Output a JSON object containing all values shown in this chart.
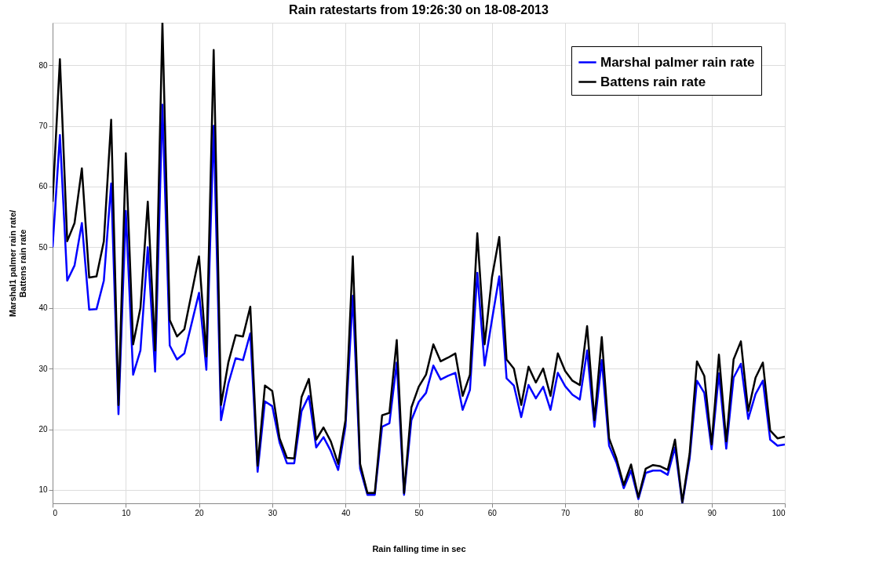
{
  "chart_data": {
    "type": "line",
    "title": "Rain ratestarts from 19:26:30 on 18-08-2013",
    "xlabel": "Rain falling time in sec",
    "ylabel": "Marshal1 palmer rain rate/\nBattens rain rate",
    "x": [
      0,
      1,
      2,
      3,
      4,
      5,
      6,
      7,
      8,
      9,
      10,
      11,
      12,
      13,
      14,
      15,
      16,
      17,
      18,
      19,
      20,
      21,
      22,
      23,
      24,
      25,
      26,
      27,
      28,
      29,
      30,
      31,
      32,
      33,
      34,
      35,
      36,
      37,
      38,
      39,
      40,
      41,
      42,
      43,
      44,
      45,
      46,
      47,
      48,
      49,
      50,
      51,
      52,
      53,
      54,
      55,
      56,
      57,
      58,
      59,
      60,
      61,
      62,
      63,
      64,
      65,
      66,
      67,
      68,
      69,
      70,
      71,
      72,
      73,
      74,
      75,
      76,
      77,
      78,
      79,
      80,
      81,
      82,
      83,
      84,
      85,
      86,
      87,
      88,
      89,
      90,
      91,
      92,
      93,
      94,
      95,
      96,
      97,
      98,
      99,
      100
    ],
    "series": [
      {
        "name": "Marshal palmer rain rate",
        "color": "#0000ff",
        "values": [
          50,
          68.5,
          44.5,
          47,
          54,
          39.7,
          39.8,
          44.5,
          60.5,
          22.5,
          56,
          29,
          33,
          50,
          29.5,
          73.5,
          33.8,
          31.5,
          32.5,
          37.5,
          42.5,
          29.8,
          70,
          21.5,
          27.5,
          31.7,
          31.4,
          35.8,
          13,
          24.6,
          23.8,
          17.8,
          14.4,
          14.4,
          23,
          25.5,
          17,
          18.7,
          16.4,
          13.3,
          20.5,
          42,
          13.5,
          9.2,
          9.2,
          20.4,
          21,
          31,
          9.2,
          21.5,
          24.5,
          26,
          30.5,
          28.2,
          28.8,
          29.3,
          23.2,
          26.5,
          45.8,
          30.5,
          38,
          45.2,
          28.4,
          27.2,
          22,
          27.3,
          25.1,
          27,
          23.2,
          29.3,
          27.1,
          25.7,
          24.9,
          33,
          20.4,
          31.4,
          17.3,
          14.5,
          10.3,
          13.2,
          8.5,
          12.8,
          13.2,
          13.2,
          12.5,
          17,
          7.8,
          15.2,
          28,
          26,
          16.7,
          29.2,
          16.8,
          28.5,
          30.8,
          21.7,
          25.8,
          28,
          18.3,
          17.3,
          17.5
        ]
      },
      {
        "name": "Battens rain rate",
        "color": "#000000",
        "values": [
          57.5,
          81,
          51,
          54,
          63,
          45,
          45.2,
          51,
          71,
          24,
          65.5,
          34,
          40,
          57.5,
          33,
          87,
          38,
          35.3,
          36.5,
          42.5,
          48.5,
          32,
          82.5,
          24,
          31,
          35.5,
          35.3,
          40.2,
          14,
          27.2,
          26.3,
          18.5,
          15.3,
          15.2,
          25.3,
          28.3,
          18.3,
          20.3,
          18,
          14.3,
          21.5,
          48.5,
          14.3,
          9.5,
          9.5,
          22.3,
          22.7,
          34.7,
          9.5,
          23.6,
          27,
          29,
          34,
          31.2,
          31.8,
          32.5,
          25.5,
          29,
          52.3,
          34,
          45,
          51.7,
          31.5,
          30,
          24,
          30.3,
          27.7,
          30,
          25.5,
          32.5,
          29.6,
          28,
          27.3,
          37,
          21.5,
          35.2,
          18.5,
          15.2,
          10.8,
          14.2,
          8.8,
          13.5,
          14.1,
          13.9,
          13.3,
          18.3,
          8,
          16,
          31.2,
          28.8,
          17.5,
          32.3,
          18,
          31.5,
          34.5,
          23,
          28.5,
          31,
          19.8,
          18.5,
          18.8
        ]
      }
    ],
    "xlim": [
      0,
      100
    ],
    "xticks": [
      0,
      10,
      20,
      30,
      40,
      50,
      60,
      70,
      80,
      90,
      100
    ],
    "ylim": [
      7.8,
      87
    ],
    "yticks": [
      10,
      20,
      30,
      40,
      50,
      60,
      70,
      80
    ],
    "grid": true,
    "legend": "top right",
    "line_style": "solid",
    "marker": "none"
  }
}
